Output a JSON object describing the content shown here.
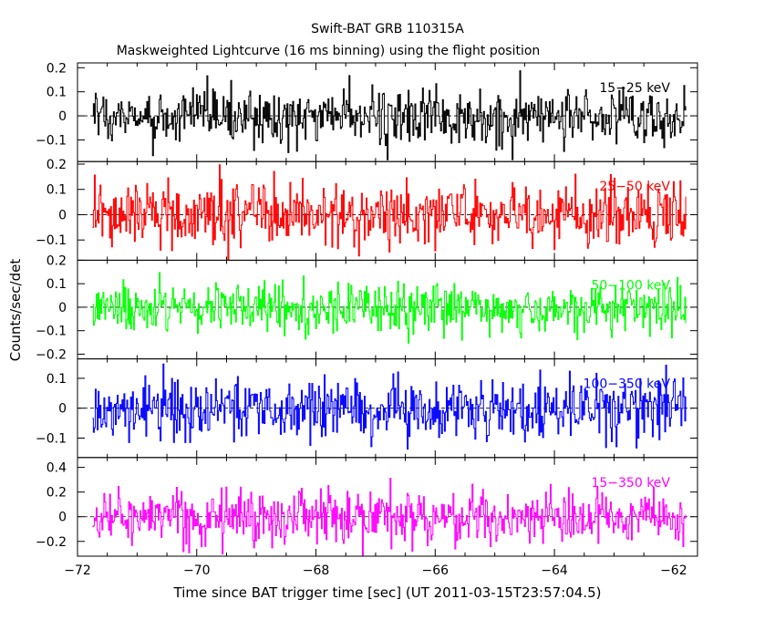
{
  "chart_data": {
    "type": "line",
    "title": "Swift-BAT GRB 110315A",
    "subtitle": "Maskweighted Lightcurve (16 ms binning) using the flight position",
    "xlabel": "Time since BAT trigger time [sec] (UT 2011-03-15T23:57:04.5)",
    "ylabel": "Counts/sec/det",
    "xlim": [
      -72,
      -61.6
    ],
    "xticks": [
      -72,
      -70,
      -68,
      -66,
      -64,
      -62
    ],
    "xtick_labels": [
      "−72",
      "−70",
      "−68",
      "−66",
      "−64",
      "−62"
    ],
    "x_start": -71.75,
    "x_end": -61.8,
    "bin_width": 0.016,
    "panels": [
      {
        "name": "15-25 keV",
        "label": "15−25 keV",
        "color": "#000000",
        "ylim": [
          -0.19,
          0.22
        ],
        "yticks": [
          -0.1,
          0,
          0.1,
          0.2
        ],
        "ytick_labels": [
          "−0.1",
          "0",
          "0.1",
          "0.2"
        ],
        "noise_amplitude": 0.055
      },
      {
        "name": "25-50 keV",
        "label": "25−50 keV",
        "color": "#ff0000",
        "ylim": [
          -0.18,
          0.21
        ],
        "yticks": [
          -0.1,
          0,
          0.1,
          0.2
        ],
        "ytick_labels": [
          "−0.1",
          "0",
          "0.1",
          "0.2"
        ],
        "noise_amplitude": 0.06
      },
      {
        "name": "50-100 keV",
        "label": "50−100 keV",
        "color": "#00ff00",
        "ylim": [
          -0.22,
          0.2
        ],
        "yticks": [
          -0.2,
          -0.1,
          0,
          0.1,
          0.2
        ],
        "ytick_labels": [
          "−0.2",
          "−0.1",
          "0",
          "0.1",
          "0.2"
        ],
        "noise_amplitude": 0.055
      },
      {
        "name": "100-350 keV",
        "label": "100−350 keV",
        "color": "#0000ff",
        "ylim": [
          -0.165,
          0.165
        ],
        "yticks": [
          -0.1,
          0,
          0.1
        ],
        "ytick_labels": [
          "−0.1",
          "0",
          "0.1"
        ],
        "noise_amplitude": 0.05
      },
      {
        "name": "15-350 keV",
        "label": "15−350 keV",
        "color": "#ff00ff",
        "ylim": [
          -0.32,
          0.48
        ],
        "yticks": [
          -0.2,
          0,
          0.2,
          0.4
        ],
        "ytick_labels": [
          "−0.2",
          "0",
          "0.2",
          "0.4"
        ],
        "noise_amplitude": 0.11
      }
    ]
  }
}
